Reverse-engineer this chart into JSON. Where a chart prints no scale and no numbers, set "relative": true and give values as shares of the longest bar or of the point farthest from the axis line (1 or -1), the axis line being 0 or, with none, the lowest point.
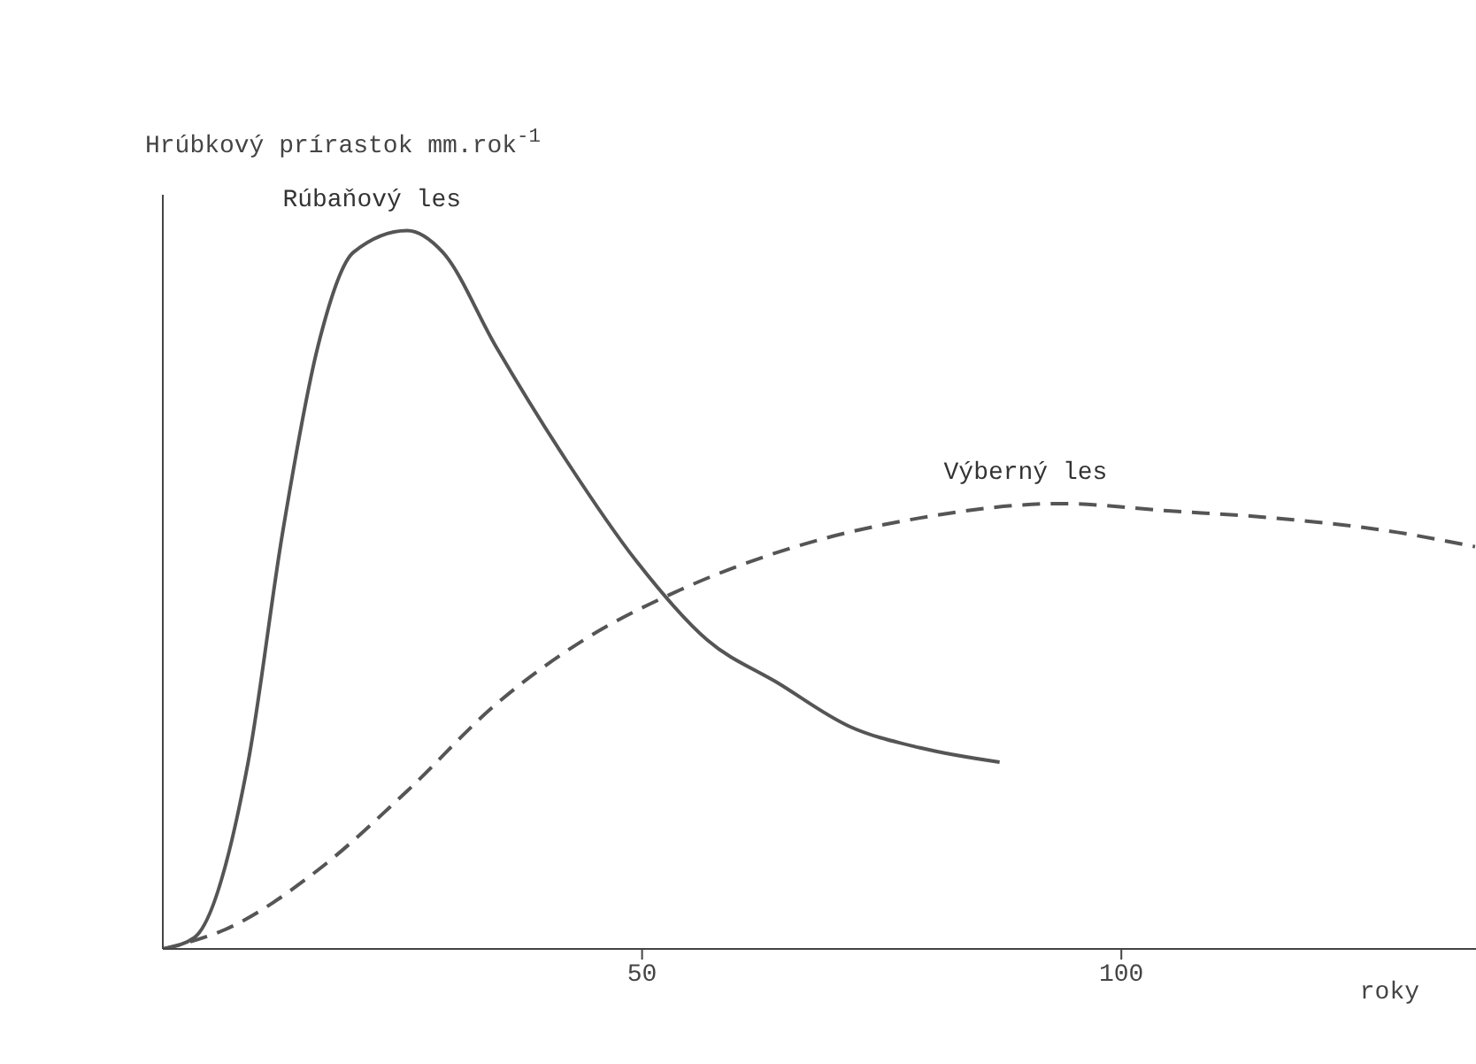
{
  "chart_data": {
    "type": "line",
    "ylabel": "Hrúbkový prírastok mm.rok$^{-1}$",
    "xlabel": "roky",
    "relative": true,
    "xlim": [
      0,
      137
    ],
    "xticks": [
      50,
      100
    ],
    "grid": false,
    "legend": false,
    "marker": "none",
    "series": [
      {
        "name": "Rúbaňový les",
        "color": "#555555",
        "line_style": "solid",
        "x": [
          0,
          3.3,
          8.9,
          12.5,
          16.2,
          19.9,
          25.5,
          29.2,
          34.7,
          42.1,
          49.4,
          56.8,
          64.2,
          71.6,
          79,
          87.3
        ],
        "values": [
          0,
          0.016,
          0.26,
          0.58,
          0.84,
          0.97,
          1,
          0.97,
          0.84,
          0.68,
          0.54,
          0.43,
          0.37,
          0.31,
          0.28,
          0.26
        ]
      },
      {
        "name": "Výberný les",
        "color": "#555555",
        "line_style": "dashed",
        "x": [
          0,
          7,
          16.2,
          25.5,
          34.7,
          43.9,
          54,
          66,
          79,
          93.7,
          104.8,
          115.9,
          128.8,
          136.9
        ],
        "values": [
          0,
          0.03,
          0.11,
          0.22,
          0.34,
          0.43,
          0.5,
          0.56,
          0.6,
          0.62,
          0.61,
          0.6,
          0.58,
          0.56
        ]
      }
    ]
  }
}
